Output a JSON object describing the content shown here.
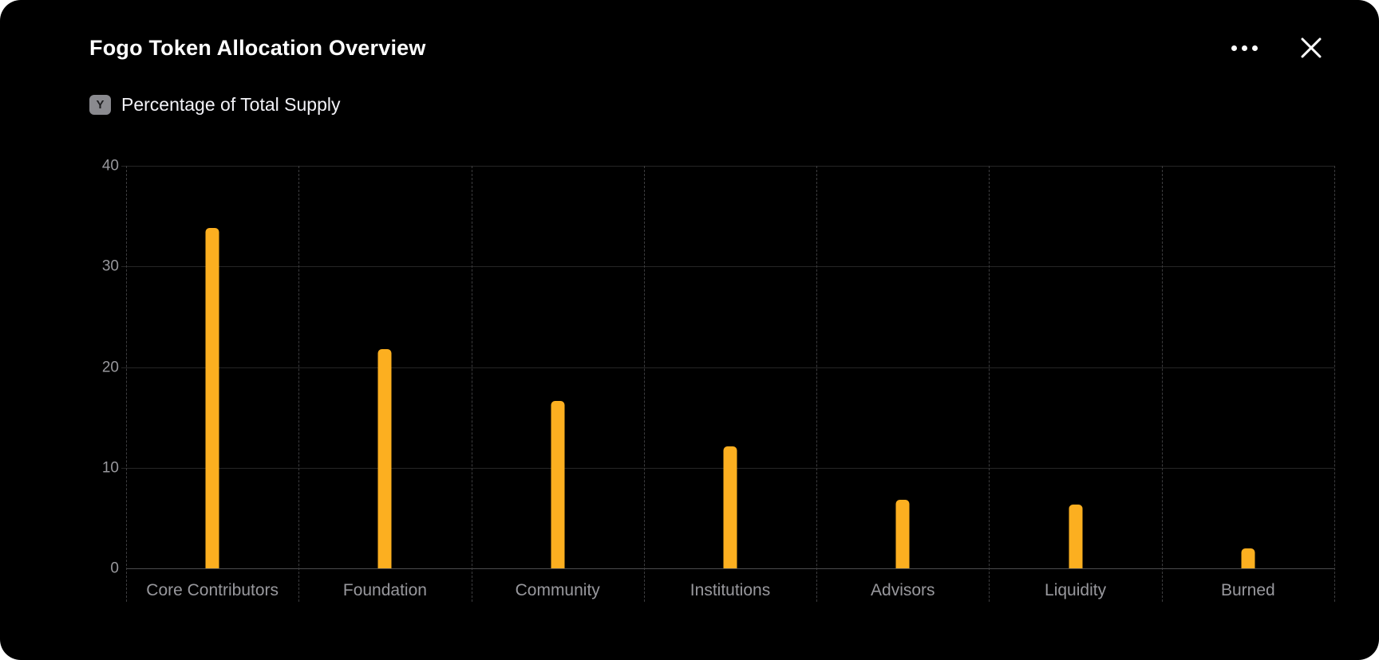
{
  "header": {
    "title": "Fogo Token Allocation Overview",
    "actions": [
      {
        "name": "more-options-button",
        "icon": "ellipsis-icon"
      },
      {
        "name": "close-button",
        "icon": "close-icon"
      }
    ]
  },
  "legend": {
    "badge": "Y",
    "label": "Percentage of Total Supply"
  },
  "chart_data": {
    "type": "bar",
    "title": "Fogo Token Allocation Overview",
    "ylabel": "Percentage of Total Supply",
    "xlabel": "",
    "categories": [
      "Core Contributors",
      "Foundation",
      "Community",
      "Institutions",
      "Advisors",
      "Liquidity",
      "Burned"
    ],
    "values": [
      33.8,
      21.8,
      16.6,
      12.1,
      6.8,
      6.3,
      2.0
    ],
    "ylim": [
      0,
      40
    ],
    "yticks": [
      0,
      10,
      20,
      30,
      40
    ],
    "bar_color": "#FCAF20",
    "grid": {
      "horizontal": "solid",
      "vertical": "dashed-column-separators"
    },
    "legend_position": "none",
    "background": "#000000"
  },
  "colors": {
    "page_bg": "#ffffff",
    "card_bg": "#000000",
    "title_text": "#ffffff",
    "axis_text": "#98989d",
    "gridline": "#262626",
    "baseline": "#4b4b4d",
    "separator": "#3d3d3f",
    "bar": "#FCAF20",
    "badge_bg": "#8a8a8f",
    "badge_text": "#1f1f22"
  }
}
